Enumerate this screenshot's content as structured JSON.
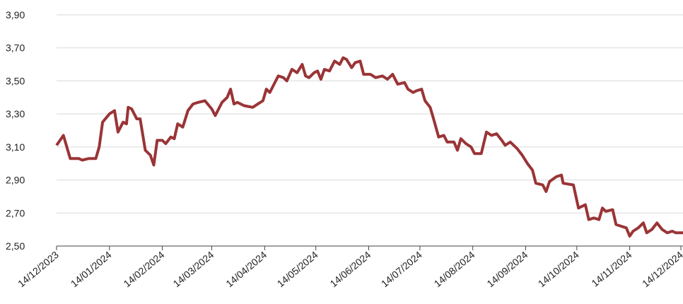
{
  "chart_data": {
    "type": "line",
    "x": [
      "14/12/2023",
      "18/12/2023",
      "20/12/2023",
      "22/12/2023",
      "27/12/2023",
      "29/12/2023",
      "02/01/2024",
      "06/01/2024",
      "08/01/2024",
      "10/01/2024",
      "14/01/2024",
      "17/01/2024",
      "19/01/2024",
      "22/01/2024",
      "24/01/2024",
      "25/01/2024",
      "27/01/2024",
      "30/01/2024",
      "01/02/2024",
      "04/02/2024",
      "07/02/2024",
      "09/02/2024",
      "11/02/2024",
      "14/02/2024",
      "16/02/2024",
      "19/02/2024",
      "21/02/2024",
      "23/02/2024",
      "26/02/2024",
      "29/02/2024",
      "03/03/2024",
      "06/03/2024",
      "10/03/2024",
      "14/03/2024",
      "16/03/2024",
      "20/03/2024",
      "23/03/2024",
      "25/03/2024",
      "27/03/2024",
      "29/03/2024",
      "02/04/2024",
      "07/04/2024",
      "10/04/2024",
      "13/04/2024",
      "15/04/2024",
      "17/04/2024",
      "19/04/2024",
      "22/04/2024",
      "25/04/2024",
      "27/04/2024",
      "30/04/2024",
      "03/05/2024",
      "06/05/2024",
      "08/05/2024",
      "10/05/2024",
      "13/05/2024",
      "15/05/2024",
      "17/05/2024",
      "19/05/2024",
      "22/05/2024",
      "25/05/2024",
      "28/05/2024",
      "30/05/2024",
      "01/06/2024",
      "04/06/2024",
      "06/06/2024",
      "09/06/2024",
      "11/06/2024",
      "15/06/2024",
      "18/06/2024",
      "22/06/2024",
      "25/06/2024",
      "28/06/2024",
      "01/07/2024",
      "05/07/2024",
      "07/07/2024",
      "10/07/2024",
      "12/07/2024",
      "15/07/2024",
      "17/07/2024",
      "20/07/2024",
      "22/07/2024",
      "25/07/2024",
      "28/07/2024",
      "30/07/2024",
      "03/08/2024",
      "05/08/2024",
      "07/08/2024",
      "10/08/2024",
      "13/08/2024",
      "15/08/2024",
      "19/08/2024",
      "22/08/2024",
      "25/08/2024",
      "28/08/2024",
      "31/08/2024",
      "02/09/2024",
      "05/09/2024",
      "09/09/2024",
      "12/09/2024",
      "15/09/2024",
      "18/09/2024",
      "20/09/2024",
      "24/09/2024",
      "26/09/2024",
      "28/09/2024",
      "02/10/2024",
      "05/10/2024",
      "06/10/2024",
      "12/10/2024",
      "15/10/2024",
      "19/10/2024",
      "21/10/2024",
      "24/10/2024",
      "27/10/2024",
      "29/10/2024",
      "31/10/2024",
      "04/11/2024",
      "06/11/2024",
      "09/11/2024",
      "12/11/2024",
      "14/11/2024",
      "16/11/2024",
      "19/11/2024",
      "22/11/2024",
      "24/11/2024",
      "27/11/2024",
      "30/11/2024",
      "03/12/2024",
      "06/12/2024",
      "09/12/2024",
      "11/12/2024",
      "14/12/2024",
      "16/12/2024"
    ],
    "series": [
      {
        "color": "#9a3436",
        "values": [
          3.11,
          3.17,
          3.1,
          3.03,
          3.03,
          3.02,
          3.03,
          3.03,
          3.1,
          3.25,
          3.3,
          3.32,
          3.19,
          3.25,
          3.24,
          3.34,
          3.33,
          3.27,
          3.27,
          3.08,
          3.05,
          2.99,
          3.14,
          3.14,
          3.12,
          3.16,
          3.15,
          3.24,
          3.22,
          3.32,
          3.36,
          3.37,
          3.38,
          3.33,
          3.29,
          3.37,
          3.4,
          3.45,
          3.36,
          3.37,
          3.35,
          3.34,
          3.36,
          3.38,
          3.45,
          3.43,
          3.47,
          3.53,
          3.52,
          3.5,
          3.57,
          3.55,
          3.6,
          3.53,
          3.52,
          3.55,
          3.56,
          3.51,
          3.57,
          3.56,
          3.62,
          3.6,
          3.64,
          3.63,
          3.58,
          3.61,
          3.62,
          3.54,
          3.54,
          3.52,
          3.53,
          3.51,
          3.54,
          3.48,
          3.49,
          3.45,
          3.43,
          3.44,
          3.45,
          3.38,
          3.34,
          3.27,
          3.16,
          3.17,
          3.13,
          3.13,
          3.08,
          3.15,
          3.12,
          3.1,
          3.06,
          3.06,
          3.19,
          3.17,
          3.18,
          3.14,
          3.11,
          3.13,
          3.09,
          3.05,
          3.0,
          2.96,
          2.88,
          2.87,
          2.83,
          2.89,
          2.92,
          2.93,
          2.88,
          2.87,
          2.73,
          2.75,
          2.66,
          2.67,
          2.66,
          2.73,
          2.71,
          2.72,
          2.63,
          2.62,
          2.61,
          2.56,
          2.59,
          2.61,
          2.64,
          2.58,
          2.6,
          2.64,
          2.6,
          2.58,
          2.59,
          2.58,
          2.58,
          2.58
        ]
      }
    ],
    "xlim": [
      "14/12/2023",
      "16/12/2024"
    ],
    "xticks": [
      "14/12/2023",
      "14/01/2024",
      "14/02/2024",
      "14/03/2024",
      "14/04/2024",
      "14/05/2024",
      "14/06/2024",
      "14/07/2024",
      "14/08/2024",
      "14/09/2024",
      "14/10/2024",
      "14/11/2024",
      "14/12/2024"
    ],
    "ylim": [
      2.5,
      3.9
    ],
    "yticks": [
      {
        "value": 2.5,
        "label": "2,50"
      },
      {
        "value": 2.7,
        "label": "2,70"
      },
      {
        "value": 2.9,
        "label": "2,90"
      },
      {
        "value": 3.1,
        "label": "3,10"
      },
      {
        "value": 3.3,
        "label": "3,30"
      },
      {
        "value": 3.5,
        "label": "3,50"
      },
      {
        "value": 3.7,
        "label": "3,70"
      },
      {
        "value": 3.9,
        "label": "3,90"
      }
    ],
    "grid": true
  }
}
